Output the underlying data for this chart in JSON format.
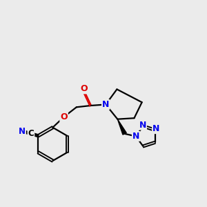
{
  "bg_color": "#ebebeb",
  "atom_colors": {
    "N": "#0000ee",
    "O": "#dd0000",
    "C": "#000000"
  },
  "bond_color": "#000000",
  "bond_width": 1.6,
  "figsize": [
    3.0,
    3.0
  ],
  "dpi": 100
}
